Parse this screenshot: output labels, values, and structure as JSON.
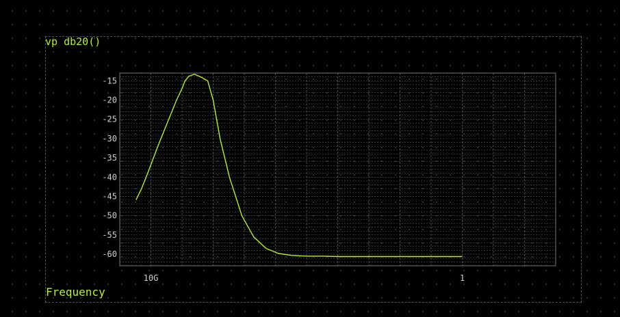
{
  "plot": {
    "title": "vp db20()",
    "xlabel": "Frequency"
  },
  "colors": {
    "trace": "#b6f22a",
    "axis_text": "#cfcfcf",
    "grid": "#555555"
  },
  "chart_data": {
    "type": "line",
    "title": "vp db20()",
    "xlabel": "Frequency",
    "ylabel": "",
    "x_scale": "log",
    "x_direction": "reversed",
    "xlim": [
      100000000000,
      0.001
    ],
    "ylim": [
      -63,
      -13
    ],
    "x_ticks": [
      {
        "value": 10000000000,
        "label": "10G"
      },
      {
        "value": 1,
        "label": "1"
      }
    ],
    "y_ticks": [
      -15,
      -20,
      -25,
      -30,
      -35,
      -40,
      -45,
      -50,
      -55,
      -60
    ],
    "grid": true,
    "series": [
      {
        "values_x": [
          30000000000,
          20000000000,
          12000000000,
          6000000000,
          3000000000,
          1500000000,
          1000000000,
          800000000,
          600000000,
          400000000,
          250000000,
          150000000,
          100000000,
          60000000,
          30000000,
          12000000,
          5000000,
          2000000,
          800000,
          300000,
          100000,
          30000,
          10000,
          3000,
          1000,
          300,
          100,
          30,
          10,
          3,
          1
        ],
        "values_y": [
          -45.9,
          -43.0,
          -38.5,
          -32.0,
          -26.0,
          -20.0,
          -17.0,
          -15.0,
          -13.8,
          -13.3,
          -14.0,
          -15.0,
          -20.0,
          -30.0,
          -40.0,
          -50.0,
          -55.5,
          -58.5,
          -59.8,
          -60.3,
          -60.5,
          -60.5,
          -60.6,
          -60.6,
          -60.6,
          -60.6,
          -60.6,
          -60.6,
          -60.6,
          -60.6,
          -60.6
        ]
      }
    ]
  }
}
